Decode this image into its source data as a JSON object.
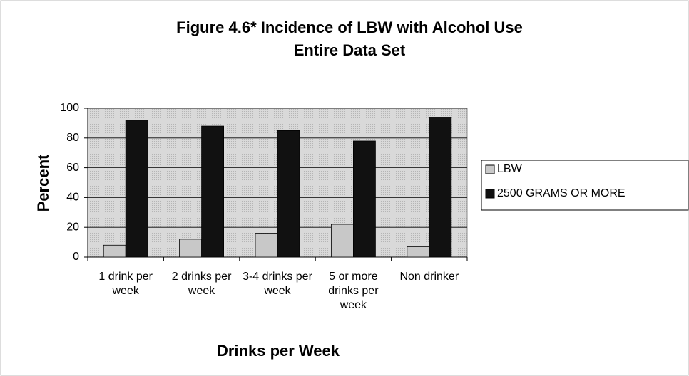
{
  "chart_data": {
    "type": "bar",
    "title": "Figure 4.6*  Incidence of LBW with Alcohol Use",
    "subtitle": "Entire Data Set",
    "x_label": "Drinks per Week",
    "y_label": "Percent",
    "categories": [
      "1 drink per week",
      "2 drinks per week",
      "3-4 drinks per week",
      "5 or more drinks per week",
      "Non drinker"
    ],
    "series": [
      {
        "name": "LBW",
        "color": "#c8c8c8",
        "values": [
          8,
          12,
          16,
          22,
          7
        ]
      },
      {
        "name": "2500 GRAMS OR MORE",
        "color": "#111111",
        "values": [
          92,
          88,
          85,
          78,
          94
        ]
      }
    ],
    "ylim": [
      0,
      100
    ],
    "yticks": [
      0,
      20,
      40,
      60,
      80,
      100
    ],
    "grid": true,
    "legend": "right"
  }
}
